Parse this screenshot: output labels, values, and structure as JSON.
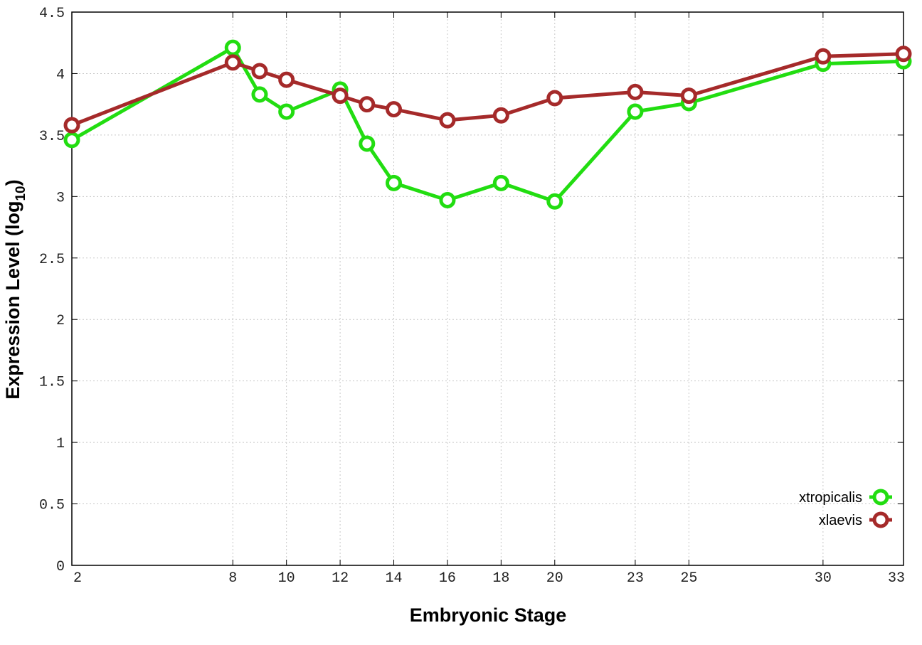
{
  "chart_data": {
    "type": "line",
    "title": "",
    "xlabel": "Embryonic Stage",
    "ylabel": "Expression Level (log",
    "ylabel_sub": "10",
    "ylabel_close": ")",
    "x": [
      2,
      8,
      9,
      10,
      12,
      13,
      14,
      16,
      18,
      20,
      23,
      25,
      30,
      33
    ],
    "xticks": [
      "2",
      "8",
      "10",
      "12",
      "14",
      "16",
      "18",
      "20",
      "23",
      "25",
      "30",
      "33"
    ],
    "xlim": [
      2,
      33
    ],
    "yticks": [
      "0",
      "0.5",
      "1",
      "1.5",
      "2",
      "2.5",
      "3",
      "3.5",
      "4",
      "4.5"
    ],
    "ylim": [
      0,
      4.5
    ],
    "grid": true,
    "legend_position": "bottom-right",
    "series": [
      {
        "name": "xtropicalis",
        "color": "#22dd11",
        "values": [
          3.46,
          4.21,
          3.83,
          3.69,
          3.87,
          3.43,
          3.11,
          2.97,
          3.11,
          2.96,
          3.69,
          3.76,
          4.08,
          4.1
        ]
      },
      {
        "name": "xlaevis",
        "color": "#a52a2a",
        "values": [
          3.58,
          4.09,
          4.02,
          3.95,
          3.82,
          3.75,
          3.71,
          3.62,
          3.66,
          3.8,
          3.85,
          3.82,
          4.14,
          4.16
        ]
      }
    ]
  }
}
